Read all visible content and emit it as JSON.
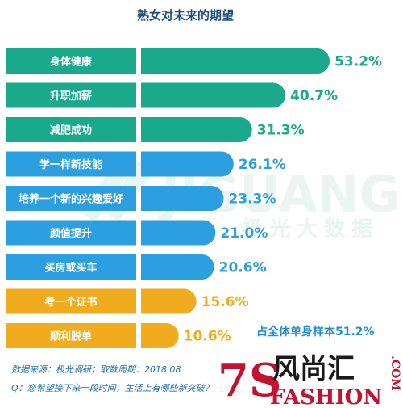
{
  "chart_data": {
    "type": "bar",
    "orientation": "horizontal",
    "title": "熟女对未来的期望",
    "categories": [
      "身体健康",
      "升职加薪",
      "减肥成功",
      "学一样新技能",
      "培养一个新的兴趣爱好",
      "颜值提升",
      "买房或买车",
      "考一个证书",
      "顺利脱单"
    ],
    "values": [
      53.2,
      40.7,
      31.3,
      26.1,
      23.3,
      21.0,
      20.6,
      15.6,
      10.6
    ],
    "value_labels": [
      "53.2%",
      "40.7%",
      "31.3%",
      "26.1%",
      "23.3%",
      "21.0%",
      "20.6%",
      "15.6%",
      "10.6%"
    ],
    "unit": "%",
    "xlim": [
      0,
      55
    ],
    "grid": false,
    "bar_colors": [
      "#1aa98a",
      "#1aa98a",
      "#1aa98a",
      "#2b9fe0",
      "#2b9fe0",
      "#2b9fe0",
      "#2b9fe0",
      "#f0ab1e",
      "#f0ab1e"
    ],
    "value_label_colors": [
      "#1aa98a",
      "#1aa98a",
      "#1aa98a",
      "#2b9fe0",
      "#2b9fe0",
      "#2b9fe0",
      "#2b9fe0",
      "#f0ab1e",
      "#f0ab1e"
    ],
    "annotation": "占全体单身样本51.2%"
  },
  "footnote": {
    "source": "数据来源：极光调研；取数周期：2018.08",
    "question": "Q：您希望接下来一段时间，生活上有哪些新突破？（多选）"
  },
  "watermark": {
    "brand_en": "JIGUANG",
    "brand_cn": "极光大数据"
  },
  "logo": {
    "number": "7S",
    "cn": "风尚汇",
    "en": "FASHION",
    "suffix": ".COM"
  }
}
